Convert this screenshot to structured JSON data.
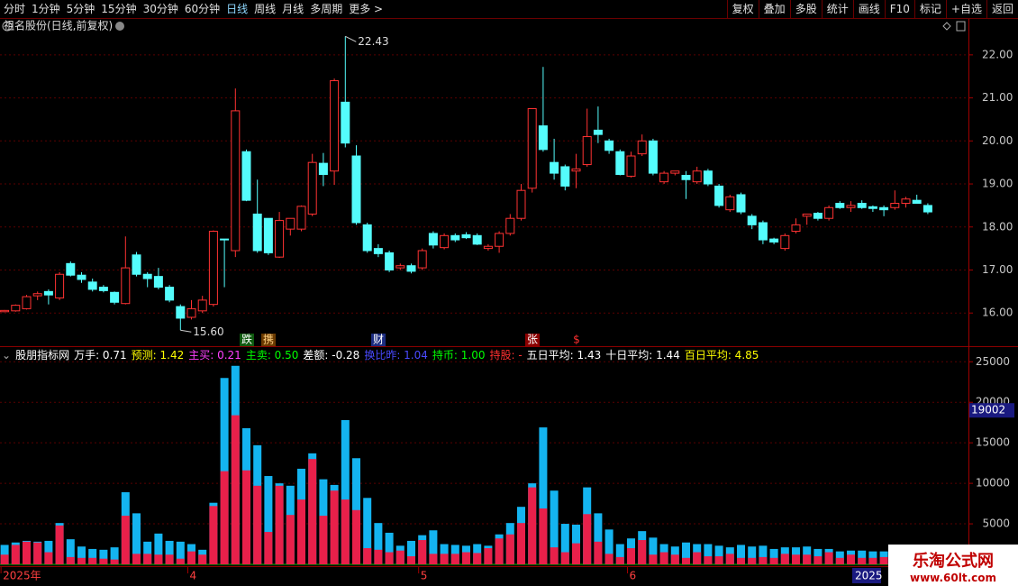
{
  "toolbar": {
    "left": [
      "分时",
      "1分钟",
      "5分钟",
      "15分钟",
      "30分钟",
      "60分钟",
      "日线",
      "周线",
      "月线",
      "多周期",
      "更多 >"
    ],
    "right": [
      "复权",
      "叠加",
      "多股",
      "统计",
      "画线",
      "F10",
      "标记",
      "+自选",
      "返回"
    ]
  },
  "watermark": {
    "title": "乐淘公式网",
    "url": "www.60lt.com"
  },
  "chart_data": [
    {
      "type": "candlestick",
      "title": "祖名股份(日线,前复权)",
      "open": [
        16.03,
        16.05,
        16.1,
        16.4,
        16.5,
        16.35,
        17.15,
        16.88,
        16.72,
        16.6,
        16.48,
        16.22,
        17.35,
        16.9,
        16.85,
        16.6,
        16.15,
        15.9,
        16.05,
        16.2,
        17.72,
        17.45,
        19.75,
        18.3,
        18.2,
        17.3,
        17.95,
        17.95,
        18.3,
        19.48,
        19.3,
        20.9,
        19.65,
        18.05,
        17.5,
        17.4,
        17.05,
        17.1,
        17.05,
        17.85,
        17.52,
        17.8,
        17.82,
        17.8,
        17.5,
        17.55,
        17.85,
        18.2,
        18.9,
        20.35,
        19.5,
        19.4,
        19.3,
        19.45,
        20.25,
        20.0,
        19.75,
        19.18,
        19.7,
        20.0,
        19.05,
        19.25,
        19.2,
        19.05,
        19.3,
        18.95,
        18.4,
        18.75,
        18.25,
        18.1,
        17.72,
        17.5,
        17.9,
        18.25,
        18.32,
        18.2,
        18.55,
        18.45,
        18.55,
        18.47,
        18.45,
        18.45,
        18.55,
        18.62,
        18.5
      ],
      "high": [
        16.07,
        16.2,
        16.42,
        16.5,
        16.55,
        16.95,
        17.2,
        16.95,
        16.8,
        16.65,
        16.5,
        17.78,
        17.42,
        16.95,
        17.05,
        16.65,
        16.2,
        16.3,
        16.4,
        17.92,
        17.72,
        21.22,
        19.8,
        19.1,
        18.2,
        18.35,
        18.2,
        18.5,
        19.7,
        19.72,
        21.45,
        22.43,
        19.9,
        18.1,
        17.6,
        17.45,
        17.15,
        17.15,
        17.5,
        17.9,
        17.85,
        17.85,
        17.88,
        17.85,
        17.6,
        17.9,
        18.3,
        19.0,
        20.75,
        21.72,
        20.05,
        19.45,
        19.7,
        20.75,
        20.8,
        20.05,
        19.8,
        19.75,
        20.15,
        20.05,
        19.3,
        19.3,
        19.3,
        19.4,
        19.35,
        19.0,
        18.75,
        18.8,
        18.3,
        18.15,
        17.75,
        17.85,
        18.2,
        18.3,
        18.35,
        18.5,
        18.6,
        18.6,
        18.62,
        18.5,
        18.5,
        18.85,
        18.7,
        18.75,
        18.55
      ],
      "low": [
        16.02,
        16.03,
        16.08,
        16.3,
        16.2,
        16.3,
        16.85,
        16.7,
        16.5,
        16.48,
        16.2,
        16.2,
        16.85,
        16.6,
        16.55,
        16.25,
        15.6,
        15.85,
        16.0,
        16.15,
        16.6,
        17.3,
        18.6,
        17.4,
        17.35,
        17.28,
        17.8,
        17.9,
        18.25,
        18.95,
        18.98,
        19.85,
        18.05,
        17.4,
        17.3,
        16.95,
        17.0,
        16.92,
        17.0,
        17.5,
        17.48,
        17.65,
        17.72,
        17.58,
        17.45,
        17.4,
        17.8,
        18.15,
        18.8,
        19.75,
        19.1,
        18.85,
        18.9,
        19.4,
        19.95,
        19.7,
        19.2,
        19.15,
        19.65,
        19.2,
        19.0,
        19.2,
        18.65,
        19.0,
        18.95,
        18.45,
        18.35,
        18.3,
        17.95,
        17.6,
        17.6,
        17.45,
        17.85,
        18.05,
        18.15,
        18.15,
        18.42,
        18.35,
        18.42,
        18.35,
        18.25,
        18.4,
        18.45,
        18.55,
        18.3
      ],
      "close": [
        16.06,
        16.18,
        16.38,
        16.45,
        16.42,
        16.9,
        16.88,
        16.78,
        16.55,
        16.52,
        16.25,
        17.05,
        16.9,
        16.8,
        16.6,
        16.3,
        15.88,
        16.1,
        16.3,
        17.9,
        17.7,
        20.7,
        18.62,
        17.45,
        17.4,
        18.15,
        18.2,
        18.48,
        19.5,
        19.22,
        21.4,
        19.95,
        18.1,
        17.45,
        17.38,
        17.0,
        17.1,
        16.97,
        17.45,
        17.58,
        17.8,
        17.7,
        17.75,
        17.6,
        17.55,
        17.85,
        18.2,
        18.85,
        20.75,
        19.8,
        19.25,
        18.95,
        19.35,
        20.1,
        20.15,
        19.78,
        19.22,
        19.65,
        20.0,
        19.25,
        19.25,
        19.3,
        19.1,
        19.3,
        19.0,
        18.5,
        18.7,
        18.35,
        18.05,
        17.7,
        17.65,
        17.8,
        18.05,
        18.3,
        18.2,
        18.45,
        18.45,
        18.5,
        18.45,
        18.43,
        18.4,
        18.55,
        18.65,
        18.55,
        18.35
      ],
      "up_color": "#ff3232",
      "down_color": "#54fcfc",
      "ylim": [
        15.25,
        22.5
      ],
      "yticks": [
        {
          "value": 16,
          "label": "16.00"
        },
        {
          "value": 17,
          "label": "17.00"
        },
        {
          "value": 18,
          "label": "18.00"
        },
        {
          "value": 19,
          "label": "19.00"
        },
        {
          "value": 20,
          "label": "20.00"
        },
        {
          "value": 21,
          "label": "21.00"
        },
        {
          "value": 22,
          "label": "22.00"
        }
      ],
      "grid": true,
      "max_label": "22.43",
      "min_label": "15.60",
      "events": [
        "跌",
        "携",
        "财",
        "张",
        "$"
      ]
    },
    {
      "type": "bar",
      "title": "股朋指标网",
      "indicators": [
        {
          "text": "万手: 0.71",
          "color": "#ffffff"
        },
        {
          "text": "预测: 1.42",
          "color": "#ffff00"
        },
        {
          "text": "主买: 0.21",
          "color": "#ff40ff"
        },
        {
          "text": "主卖: 0.50",
          "color": "#00ff00"
        },
        {
          "text": "差额: -0.28",
          "color": "#ffffff"
        },
        {
          "text": "换比昨: 1.04",
          "color": "#4a4aff"
        },
        {
          "text": "持币: 1.00",
          "color": "#00ff00"
        },
        {
          "text": "持股: -",
          "color": "#ff3030"
        },
        {
          "text": "五日平均: 1.43",
          "color": "#ffffff"
        },
        {
          "text": "十日平均: 1.44",
          "color": "#ffffff"
        },
        {
          "text": "百日平均: 4.85",
          "color": "#ffff00"
        }
      ],
      "categories": [
        "2025年",
        null,
        null,
        null,
        null,
        null,
        null,
        null,
        null,
        null,
        null,
        null,
        null,
        null,
        null,
        null,
        null,
        "4",
        null,
        null,
        null,
        null,
        null,
        null,
        null,
        null,
        null,
        null,
        null,
        null,
        null,
        null,
        null,
        null,
        null,
        null,
        null,
        null,
        "5",
        null,
        null,
        null,
        null,
        null,
        null,
        null,
        null,
        null,
        null,
        null,
        null,
        null,
        null,
        null,
        null,
        null,
        null,
        "6",
        null,
        null,
        null,
        null,
        null,
        null,
        null,
        null,
        null,
        null,
        null,
        null,
        null,
        null,
        null,
        null,
        null,
        null,
        null,
        null,
        null,
        null,
        null,
        null,
        null,
        null,
        null
      ],
      "series": [
        {
          "color": "#14b4f0",
          "values": [
            2400,
            2700,
            2900,
            2800,
            2900,
            5100,
            3100,
            2200,
            1900,
            1800,
            2100,
            8900,
            6300,
            2800,
            3800,
            2900,
            2800,
            2500,
            1800,
            7600,
            23000,
            24500,
            16800,
            14700,
            10900,
            10000,
            9700,
            11800,
            13700,
            10500,
            9800,
            17800,
            13100,
            8200,
            5100,
            3900,
            2300,
            2900,
            3600,
            4200,
            2500,
            2400,
            2300,
            2500,
            2300,
            3700,
            5100,
            7100,
            10000,
            16900,
            9100,
            5000,
            4900,
            9500,
            6300,
            4300,
            2500,
            3200,
            4100,
            3300,
            2500,
            2200,
            2700,
            2500,
            2500,
            2300,
            2100,
            2400,
            2200,
            2300,
            1900,
            2100,
            2100,
            2200,
            1900,
            1900,
            1600,
            1700,
            1700,
            1600,
            1600,
            1700,
            1800,
            1400,
            1400
          ]
        },
        {
          "color": "#e8204a",
          "values": [
            1200,
            2400,
            2800,
            2700,
            1500,
            4800,
            900,
            800,
            800,
            700,
            600,
            6000,
            1300,
            1300,
            1200,
            1200,
            700,
            1600,
            1200,
            7200,
            11500,
            18400,
            11600,
            9700,
            4000,
            9700,
            6100,
            8000,
            13000,
            6000,
            9100,
            8000,
            6700,
            2000,
            1800,
            1500,
            1700,
            1000,
            3000,
            1300,
            1300,
            1300,
            1500,
            1400,
            2000,
            3200,
            3700,
            5100,
            9500,
            6900,
            2100,
            1500,
            2600,
            6200,
            2800,
            1300,
            900,
            2000,
            3000,
            1200,
            1500,
            1200,
            800,
            1500,
            1000,
            1000,
            1300,
            800,
            800,
            900,
            800,
            1300,
            1200,
            1200,
            1000,
            1500,
            800,
            1200,
            800,
            800,
            900,
            1300,
            1300,
            700,
            700
          ]
        }
      ],
      "ylim": [
        0,
        26700
      ],
      "yticks": [
        5000,
        10000,
        15000,
        20000,
        25000
      ],
      "grid": true,
      "cursor_value": 19002,
      "cursor_date": "2025"
    }
  ]
}
